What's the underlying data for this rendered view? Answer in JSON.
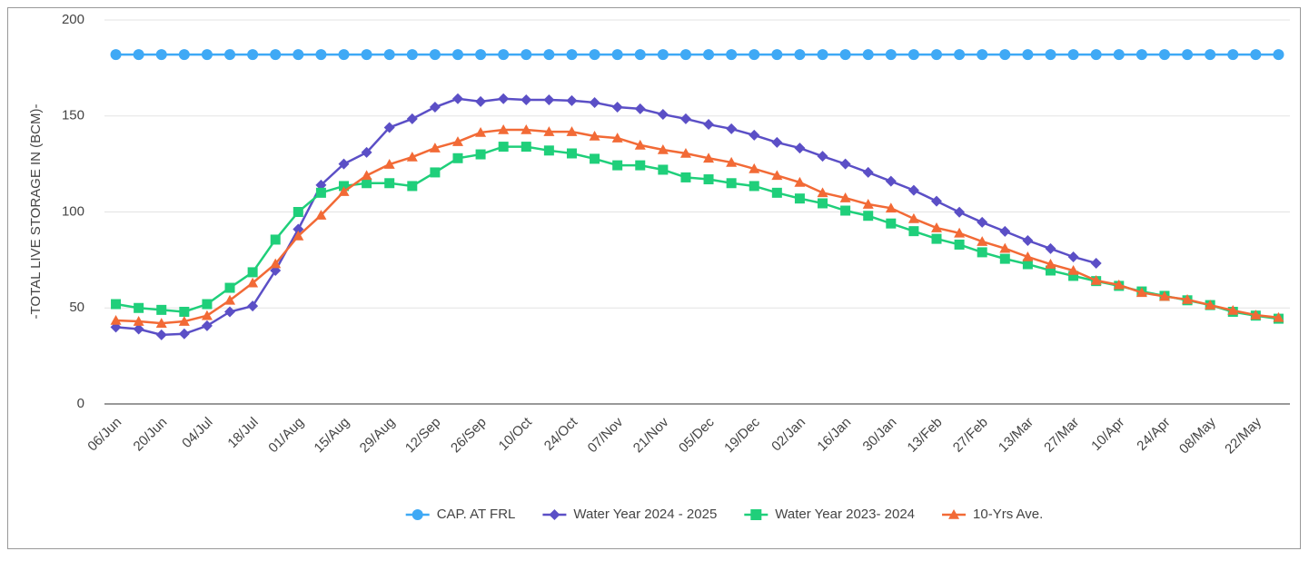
{
  "chart_data": {
    "type": "line",
    "y_label": "-TOTAL LIVE STORAGE IN (BCM)-",
    "categories": [
      "06/Jun",
      null,
      "20/Jun",
      null,
      "04/Jul",
      null,
      "18/Jul",
      null,
      "01/Aug",
      null,
      "15/Aug",
      null,
      "29/Aug",
      null,
      "12/Sep",
      null,
      "26/Sep",
      null,
      "10/Oct",
      null,
      "24/Oct",
      null,
      "07/Nov",
      null,
      "21/Nov",
      null,
      "05/Dec",
      null,
      "19/Dec",
      null,
      "02/Jan",
      null,
      "16/Jan",
      null,
      "30/Jan",
      null,
      "13/Feb",
      null,
      "27/Feb",
      null,
      "13/Mar",
      null,
      "27/Mar",
      null,
      "10/Apr",
      null,
      "24/Apr",
      null,
      "08/May",
      null,
      "22/May",
      null
    ],
    "series": [
      {
        "name": "CAP. AT FRL",
        "color": "#3fa9f5",
        "marker": "circle",
        "values": [
          182,
          182,
          182,
          182,
          182,
          182,
          182,
          182,
          182,
          182,
          182,
          182,
          182,
          182,
          182,
          182,
          182,
          182,
          182,
          182,
          182,
          182,
          182,
          182,
          182,
          182,
          182,
          182,
          182,
          182,
          182,
          182,
          182,
          182,
          182,
          182,
          182,
          182,
          182,
          182,
          182,
          182,
          182,
          182,
          182,
          182,
          182,
          182,
          182,
          182,
          182,
          182
        ]
      },
      {
        "name": "Water Year 2024 - 2025",
        "color": "#5b4fc6",
        "marker": "diamond",
        "values": [
          40,
          39,
          36,
          36.5,
          40.7,
          48,
          51,
          69.5,
          91,
          114,
          125,
          131,
          144,
          148.5,
          154.6,
          159,
          157.5,
          159,
          158.4,
          158.4,
          158,
          157,
          154.6,
          153.7,
          150.8,
          148.5,
          145.6,
          143.3,
          140,
          136.2,
          133.3,
          129,
          125,
          120.6,
          116,
          111.3,
          105.6,
          99.9,
          94.6,
          89.9,
          85.1,
          80.9,
          76.6,
          73.3,
          null,
          null,
          null,
          null,
          null,
          null,
          null,
          null
        ]
      },
      {
        "name": "Water Year 2023- 2024",
        "color": "#1fcf7a",
        "marker": "square",
        "values": [
          52,
          50,
          49,
          48,
          52,
          60.5,
          68.6,
          85.6,
          100,
          110,
          113.5,
          115,
          115,
          113.5,
          120.6,
          128,
          130,
          134,
          134,
          132,
          130.5,
          127.7,
          124.3,
          124.3,
          122,
          118,
          117,
          115,
          113.5,
          110,
          107,
          104.5,
          100.7,
          98,
          94,
          90,
          86,
          83,
          79,
          75.6,
          72.8,
          69.5,
          66.7,
          64,
          61.5,
          58.6,
          56.3,
          54,
          51.5,
          48,
          46,
          44.4
        ]
      },
      {
        "name": "10-Yrs Ave.",
        "color": "#f26a36",
        "marker": "triangle",
        "values": [
          43.5,
          43,
          42,
          43,
          46,
          54,
          63,
          73,
          87.5,
          98.3,
          110.6,
          119,
          124.8,
          128.6,
          133.3,
          136.6,
          141.4,
          142.8,
          142.8,
          141.8,
          141.8,
          139.5,
          138.5,
          134.8,
          132.4,
          130.5,
          128,
          125.8,
          122.5,
          119,
          115.4,
          110,
          107.3,
          104,
          102,
          96.5,
          91.7,
          89,
          84.6,
          81,
          76.6,
          72.8,
          69.5,
          64.3,
          62,
          58,
          56,
          54.4,
          51.5,
          48.7,
          46.3,
          45
        ]
      }
    ],
    "ylim": [
      0,
      200
    ],
    "yticks": [
      0,
      50,
      100,
      150,
      200
    ],
    "grid": true,
    "legend": "bottom"
  }
}
